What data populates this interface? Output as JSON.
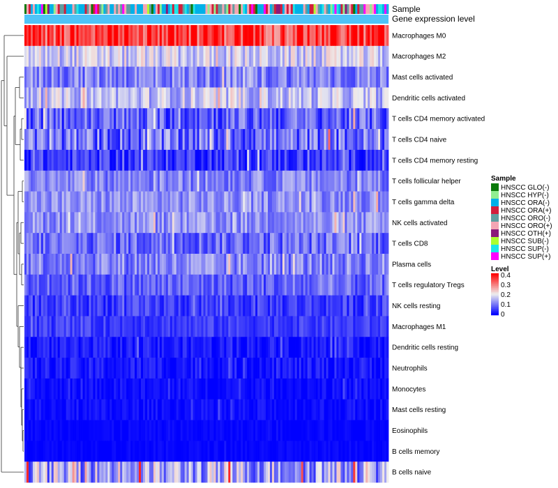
{
  "chart_data": {
    "type": "heatmap",
    "annotation_labels": [
      "Sample",
      "Gene expression level"
    ],
    "rows": [
      {
        "label": "Macrophages M0",
        "mean": 0.36,
        "spread": 0.1
      },
      {
        "label": "Macrophages M2",
        "mean": 0.17,
        "spread": 0.06
      },
      {
        "label": "Mast cells activated",
        "mean": 0.11,
        "spread": 0.06
      },
      {
        "label": "Dendritic cells activated",
        "mean": 0.16,
        "spread": 0.06
      },
      {
        "label": "T cells CD4 memory activated",
        "mean": 0.08,
        "spread": 0.07
      },
      {
        "label": "T cells CD4 naive",
        "mean": 0.09,
        "spread": 0.08
      },
      {
        "label": "T cells CD4 memory resting",
        "mean": 0.05,
        "spread": 0.05
      },
      {
        "label": "T cells follicular helper",
        "mean": 0.11,
        "spread": 0.05
      },
      {
        "label": "T cells gamma delta",
        "mean": 0.12,
        "spread": 0.05
      },
      {
        "label": "NK cells activated",
        "mean": 0.12,
        "spread": 0.05
      },
      {
        "label": "T cells CD8",
        "mean": 0.09,
        "spread": 0.06
      },
      {
        "label": "Plasma cells",
        "mean": 0.11,
        "spread": 0.06
      },
      {
        "label": "T cells regulatory  Tregs",
        "mean": 0.08,
        "spread": 0.05
      },
      {
        "label": "NK cells resting",
        "mean": 0.05,
        "spread": 0.04
      },
      {
        "label": "Macrophages M1",
        "mean": 0.05,
        "spread": 0.03
      },
      {
        "label": "Dendritic cells resting",
        "mean": 0.02,
        "spread": 0.03
      },
      {
        "label": "Neutrophils",
        "mean": 0.02,
        "spread": 0.03
      },
      {
        "label": "Monocytes",
        "mean": 0.01,
        "spread": 0.02
      },
      {
        "label": "Mast cells resting",
        "mean": 0.01,
        "spread": 0.02
      },
      {
        "label": "Eosinophils",
        "mean": 0.005,
        "spread": 0.01
      },
      {
        "label": "B cells memory",
        "mean": 0.005,
        "spread": 0.01
      },
      {
        "label": "B cells naive",
        "mean": 0.14,
        "spread": 0.1
      }
    ],
    "n_samples": 175,
    "sample_groups": [
      {
        "name": "HNSCC GLO(-)",
        "color": "#0a7a0a"
      },
      {
        "name": "HNSCC HYP(-)",
        "color": "#90ee90"
      },
      {
        "name": "HNSCC ORA(-)",
        "color": "#00b0e8"
      },
      {
        "name": "HNSCC ORA(+)",
        "color": "#d21e3c"
      },
      {
        "name": "HNSCC ORO(-)",
        "color": "#5f9ea0"
      },
      {
        "name": "HNSCC ORO(+)",
        "color": "#f4a6b4"
      },
      {
        "name": "HNSCC OTH(+)",
        "color": "#8b1a7a"
      },
      {
        "name": "HNSCC SUB(-)",
        "color": "#adff2f"
      },
      {
        "name": "HNSCC SUP(-)",
        "color": "#1ee6e6"
      },
      {
        "name": "HNSCC SUP(+)",
        "color": "#ff00ff"
      }
    ],
    "expression_level_color": "#4fc3f7",
    "legend_sample_title": "Sample",
    "legend_level_title": "Level",
    "color_scale": {
      "min": 0,
      "max": 0.4,
      "stops": [
        {
          "value": 0,
          "color": "#0000ff"
        },
        {
          "value": 0.2,
          "color": "#eeeeee"
        },
        {
          "value": 0.4,
          "color": "#ff0000"
        }
      ],
      "ticks": [
        "0.4",
        "0.3",
        "0.2",
        "0.1",
        "0"
      ]
    }
  }
}
